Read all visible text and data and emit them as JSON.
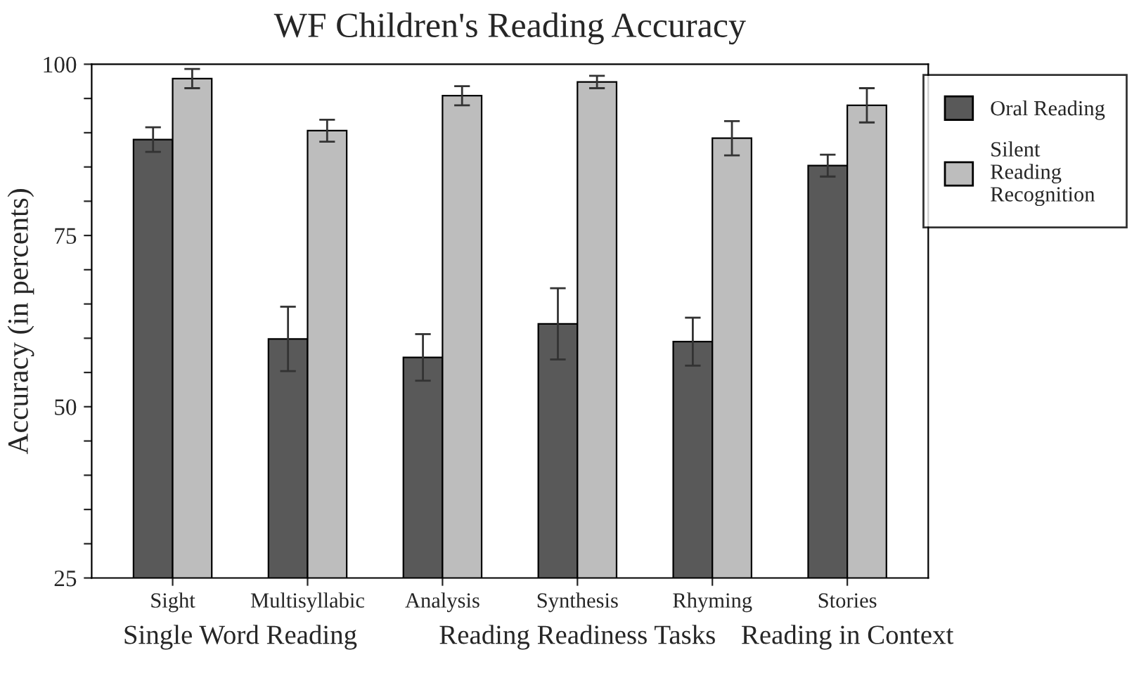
{
  "chart_data": {
    "type": "bar",
    "title": "WF Children's Reading Accuracy",
    "ylabel": "Accuracy (in percents)",
    "categories": [
      "Sight",
      "Multisyllabic",
      "Analysis",
      "Synthesis",
      "Rhyming",
      "Stories"
    ],
    "series": [
      {
        "name": "Oral Reading",
        "color": "#595959",
        "values": [
          89.0,
          59.9,
          57.2,
          62.1,
          59.5,
          85.2
        ],
        "errors": [
          1.8,
          4.7,
          3.4,
          5.2,
          3.5,
          1.6
        ]
      },
      {
        "name": "Silent Reading Recognition",
        "color": "#bdbdbd",
        "values": [
          97.9,
          90.3,
          95.4,
          97.4,
          89.2,
          94.0
        ],
        "errors": [
          1.4,
          1.6,
          1.4,
          0.9,
          2.5,
          2.5
        ]
      }
    ],
    "ylim": [
      25,
      100
    ],
    "yticks": [
      25,
      {
        "value": 30,
        "label": null
      },
      {
        "value": 35,
        "label": null
      },
      {
        "value": 40,
        "label": null
      },
      {
        "value": 45,
        "label": null
      },
      50,
      {
        "value": 55,
        "label": null
      },
      {
        "value": 60,
        "label": null
      },
      {
        "value": 65,
        "label": null
      },
      {
        "value": 70,
        "label": null
      },
      75,
      {
        "value": 80,
        "label": null
      },
      {
        "value": 85,
        "label": null
      },
      {
        "value": 90,
        "label": null
      },
      {
        "value": 95,
        "label": null
      },
      100
    ],
    "annotations": [
      "Single Word Reading",
      "Reading Readiness Tasks",
      "Reading in Context"
    ],
    "grid": false,
    "legend": "top right"
  }
}
